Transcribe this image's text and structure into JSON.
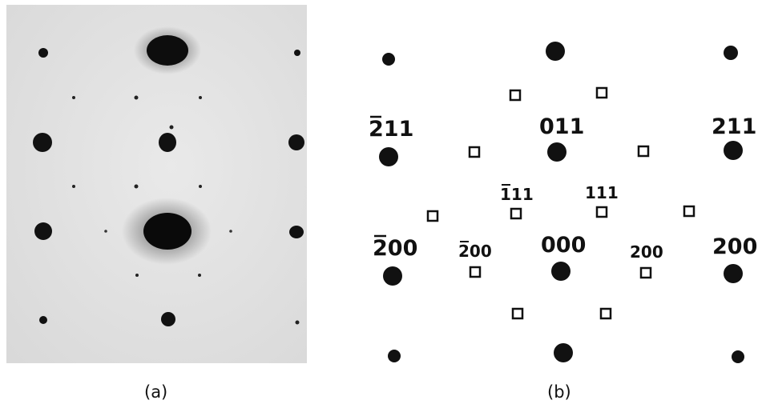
{
  "panel_a": {
    "caption": "(a)"
  },
  "panel_b": {
    "caption": "(b)",
    "labels": {
      "m211": "211",
      "l011": "011",
      "p211": "211",
      "m111": "111",
      "p111": "111",
      "m200_outer": "200",
      "m200_inner": "200",
      "l000": "000",
      "p200_inner": "200",
      "p200_outer": "200"
    }
  }
}
